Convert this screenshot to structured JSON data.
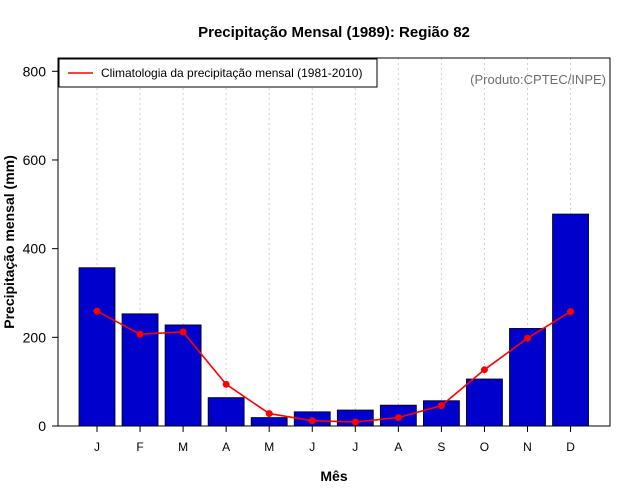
{
  "chart_data": {
    "type": "bar",
    "title": "Precipitação Mensal (1989): Região 82",
    "xlabel": "Mês",
    "ylabel": "Precipitação mensal (mm)",
    "ylim": [
      0,
      830
    ],
    "yticks": [
      0,
      200,
      400,
      600,
      800
    ],
    "categories": [
      "J",
      "F",
      "M",
      "A",
      "M",
      "J",
      "J",
      "A",
      "S",
      "O",
      "N",
      "D"
    ],
    "series": [
      {
        "name": "Precipitação mensal (1989)",
        "type": "bar",
        "color": "#0000cc",
        "values": [
          357,
          253,
          228,
          64,
          19,
          32,
          36,
          47,
          57,
          106,
          220,
          478
        ]
      },
      {
        "name": "Climatologia da precipitação mensal (1981-2010)",
        "type": "line",
        "color": "#ff0000",
        "values": [
          259,
          207,
          212,
          94,
          28,
          12,
          9,
          19,
          46,
          127,
          198,
          258
        ]
      }
    ],
    "grid": "vertical dotted",
    "legend_position": "top-left",
    "credit": "(Produto:CPTEC/INPE)"
  }
}
